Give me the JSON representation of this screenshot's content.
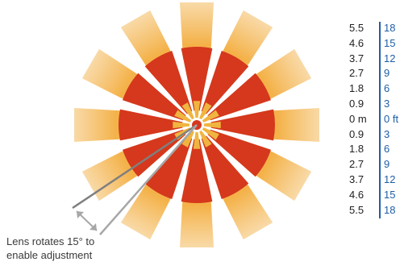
{
  "diagram": {
    "colors": {
      "core_sector": "#d5381c",
      "outer_light": "#f8d9a6",
      "outer_dark": "#f4b147",
      "center": "#f0b540",
      "arrow": "#a7a7a7"
    },
    "caption_line1": "Lens rotates 15° to",
    "caption_line2": "enable adjustment"
  },
  "scale": {
    "rows": [
      {
        "m": "5.5",
        "ft": "18"
      },
      {
        "m": "4.6",
        "ft": "15"
      },
      {
        "m": "3.7",
        "ft": "12"
      },
      {
        "m": "2.7",
        "ft": "9"
      },
      {
        "m": "1.8",
        "ft": "6"
      },
      {
        "m": "0.9",
        "ft": "3"
      },
      {
        "m": "0 m",
        "ft": "0 ft"
      },
      {
        "m": "0.9",
        "ft": "3"
      },
      {
        "m": "1.8",
        "ft": "6"
      },
      {
        "m": "2.7",
        "ft": "9"
      },
      {
        "m": "3.7",
        "ft": "12"
      },
      {
        "m": "4.6",
        "ft": "15"
      },
      {
        "m": "5.5",
        "ft": "18"
      }
    ]
  }
}
